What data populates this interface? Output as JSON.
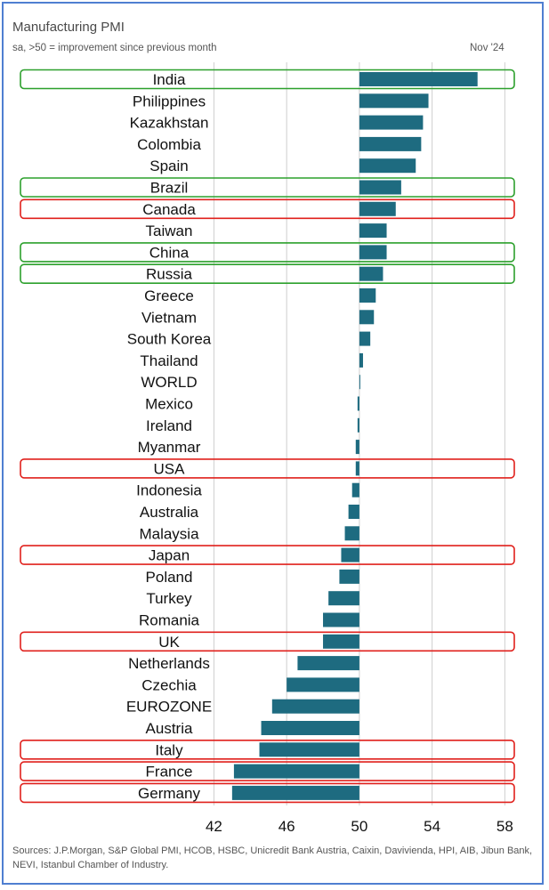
{
  "header": {
    "title": "Manufacturing PMI",
    "subtitle": "sa, >50 = improvement since previous month",
    "date": "Nov '24"
  },
  "footer": {
    "source": "Sources: J.P.Morgan, S&P Global PMI, HCOB, HSBC, Unicredit Bank Austria, Caixin, Davivienda, HPI, AIB, Jibun Bank, NEVI, Istanbul Chamber of Industry."
  },
  "colors": {
    "bar": "#1e6b80",
    "grid": "#cfcfcf",
    "highlight_good": "#2ca02c",
    "highlight_bad": "#e0201c"
  },
  "chart_data": {
    "type": "bar",
    "orientation": "horizontal",
    "baseline": 50,
    "xlim": [
      41,
      59.5
    ],
    "xticks": [
      42,
      46,
      50,
      54,
      58
    ],
    "grid": true,
    "categories": [
      "India",
      "Philippines",
      "Kazakhstan",
      "Colombia",
      "Spain",
      "Brazil",
      "Canada",
      "Taiwan",
      "China",
      "Russia",
      "Greece",
      "Vietnam",
      "South Korea",
      "Thailand",
      "WORLD",
      "Mexico",
      "Ireland",
      "Myanmar",
      "USA",
      "Indonesia",
      "Australia",
      "Malaysia",
      "Japan",
      "Poland",
      "Turkey",
      "Romania",
      "UK",
      "Netherlands",
      "Czechia",
      "EUROZONE",
      "Austria",
      "Italy",
      "France",
      "Germany"
    ],
    "values": [
      56.5,
      53.8,
      53.5,
      53.4,
      53.1,
      52.3,
      52.0,
      51.5,
      51.5,
      51.3,
      50.9,
      50.8,
      50.6,
      50.2,
      50.0,
      49.9,
      49.9,
      49.8,
      49.8,
      49.6,
      49.4,
      49.2,
      49.0,
      48.9,
      48.3,
      48.0,
      48.0,
      46.6,
      46.0,
      45.2,
      44.6,
      44.5,
      43.1,
      43.0
    ],
    "highlights": {
      "India": "good",
      "Brazil": "good",
      "China": "good",
      "Russia": "good",
      "Canada": "bad",
      "USA": "bad",
      "Japan": "bad",
      "UK": "bad",
      "Italy": "bad",
      "France": "bad",
      "Germany": "bad"
    }
  }
}
